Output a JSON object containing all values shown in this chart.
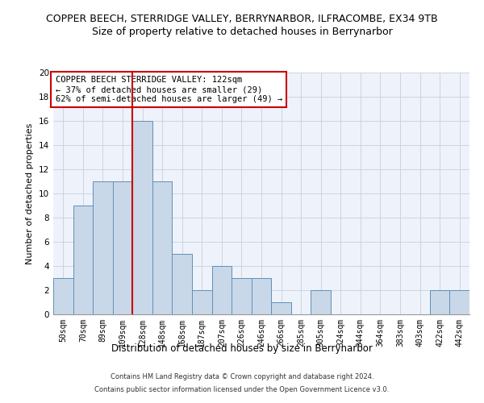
{
  "title": "COPPER BEECH, STERRIDGE VALLEY, BERRYNARBOR, ILFRACOMBE, EX34 9TB",
  "subtitle": "Size of property relative to detached houses in Berrynarbor",
  "xlabel": "Distribution of detached houses by size in Berrynarbor",
  "ylabel": "Number of detached properties",
  "footer_line1": "Contains HM Land Registry data © Crown copyright and database right 2024.",
  "footer_line2": "Contains public sector information licensed under the Open Government Licence v3.0.",
  "annotation_title": "COPPER BEECH STERRIDGE VALLEY: 122sqm",
  "annotation_line2": "← 37% of detached houses are smaller (29)",
  "annotation_line3": "62% of semi-detached houses are larger (49) →",
  "bin_labels": [
    "50sqm",
    "70sqm",
    "89sqm",
    "109sqm",
    "128sqm",
    "148sqm",
    "168sqm",
    "187sqm",
    "207sqm",
    "226sqm",
    "246sqm",
    "266sqm",
    "285sqm",
    "305sqm",
    "324sqm",
    "344sqm",
    "364sqm",
    "383sqm",
    "403sqm",
    "422sqm",
    "442sqm"
  ],
  "bar_values": [
    3,
    9,
    11,
    11,
    16,
    11,
    5,
    2,
    4,
    3,
    3,
    1,
    0,
    2,
    0,
    0,
    0,
    0,
    0,
    2,
    2
  ],
  "bar_color": "#c8d8e8",
  "bar_edge_color": "#6090b8",
  "vline_x_index": 4,
  "vline_color": "#cc0000",
  "ylim": [
    0,
    20
  ],
  "yticks": [
    0,
    2,
    4,
    6,
    8,
    10,
    12,
    14,
    16,
    18,
    20
  ],
  "grid_color": "#c8d0dc",
  "bg_color": "#eef2fa",
  "annotation_box_color": "#ffffff",
  "annotation_box_edge": "#cc0000",
  "title_fontsize": 9,
  "subtitle_fontsize": 9,
  "xlabel_fontsize": 8.5,
  "ylabel_fontsize": 8,
  "tick_fontsize": 7,
  "annotation_fontsize": 7.5,
  "footer_fontsize": 6
}
